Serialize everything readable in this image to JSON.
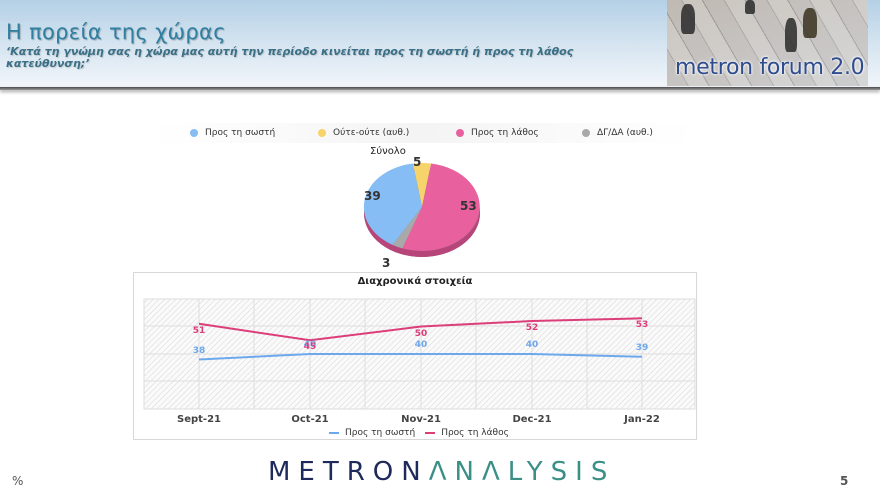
{
  "header": {
    "title": "Η πορεία της χώρας",
    "subtitle": "‘Κατά τη γνώμη σας η χώρα μας αυτή την περίοδο κινείται προς τη σωστή ή προς τη λάθος κατεύθυνση;’",
    "logo_text": "metron forum 2.0"
  },
  "footer": {
    "percent_symbol": "%",
    "brand_part1": "METRON",
    "brand_part2": "ΛNΛLYSIS",
    "page_number": "5"
  },
  "colors": {
    "right": "#86bdf5",
    "neither": "#f7d36b",
    "wrong": "#e8609e",
    "dk": "#a9a9a9",
    "line_right": "#6ea8ec",
    "line_wrong": "#dc3e7a"
  },
  "chart_data": [
    {
      "type": "pie",
      "title": "Σύνολο",
      "legend_position": "top",
      "categories": [
        "Προς τη σωστή",
        "Ούτε-ούτε (αυθ.)",
        "Προς τη λάθος",
        "ΔΓ/ΔΑ (αυθ.)"
      ],
      "values": [
        39,
        5,
        53,
        3
      ],
      "colors": [
        "#86bdf5",
        "#f7d36b",
        "#e8609e",
        "#a9a9a9"
      ]
    },
    {
      "type": "line",
      "title": "Διαχρονικά στοιχεία",
      "categories": [
        "Sept-21",
        "Oct-21",
        "Nov-21",
        "Dec-21",
        "Jan-22"
      ],
      "series": [
        {
          "name": "Προς τη σωστή",
          "values": [
            38,
            40,
            40,
            40,
            39
          ],
          "color": "#6ea8ec"
        },
        {
          "name": "Προς τη λάθος",
          "values": [
            51,
            45,
            50,
            52,
            53
          ],
          "color": "#dc3e7a"
        }
      ],
      "xlabel": "",
      "ylabel": "",
      "grid": true,
      "legend_position": "bottom"
    }
  ]
}
